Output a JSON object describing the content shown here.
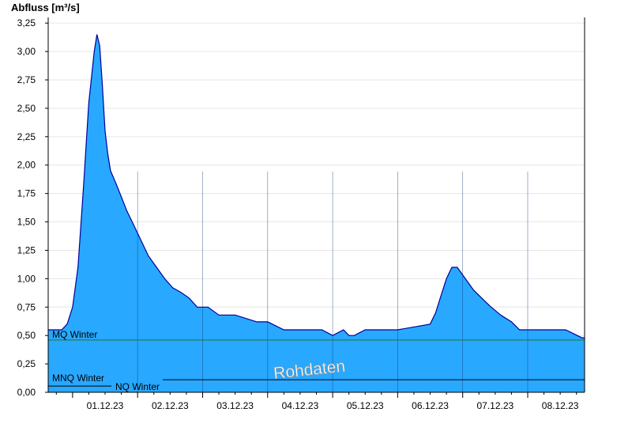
{
  "chart_data": {
    "type": "area",
    "ylabel": "Abfluss [m³/s]",
    "ylim": [
      0,
      3.3
    ],
    "yticks": [
      "0,00",
      "0,25",
      "0,50",
      "0,75",
      "1,00",
      "1,25",
      "1,50",
      "1,75",
      "2,00",
      "2,25",
      "2,50",
      "2,75",
      "3,00",
      "3,25"
    ],
    "ytick_values": [
      0,
      0.25,
      0.5,
      0.75,
      1.0,
      1.25,
      1.5,
      1.75,
      2.0,
      2.25,
      2.5,
      2.75,
      3.0,
      3.25
    ],
    "x_start": "2023-11-30T15:00",
    "x_end": "2023-12-08T21:00",
    "xticks": [
      {
        "label": "01.12.23",
        "value": "2023-12-01T12:00"
      },
      {
        "label": "02.12.23",
        "value": "2023-12-02T12:00"
      },
      {
        "label": "03.12.23",
        "value": "2023-12-03T12:00"
      },
      {
        "label": "04.12.23",
        "value": "2023-12-04T12:00"
      },
      {
        "label": "05.12.23",
        "value": "2023-12-05T12:00"
      },
      {
        "label": "06.12.23",
        "value": "2023-12-06T12:00"
      },
      {
        "label": "07.12.23",
        "value": "2023-12-07T12:00"
      },
      {
        "label": "08.12.23",
        "value": "2023-12-08T12:00"
      }
    ],
    "day_boundaries": [
      "2023-12-02T00:00",
      "2023-12-03T00:00",
      "2023-12-04T00:00",
      "2023-12-05T00:00",
      "2023-12-06T00:00",
      "2023-12-07T00:00",
      "2023-12-08T00:00"
    ],
    "series": [
      {
        "x": [
          "2023-11-30T15:00",
          "2023-11-30T20:00",
          "2023-11-30T22:00",
          "2023-12-01T00:00",
          "2023-12-01T02:00",
          "2023-12-01T04:00",
          "2023-12-01T06:00",
          "2023-12-01T08:00",
          "2023-12-01T09:00",
          "2023-12-01T10:00",
          "2023-12-01T11:00",
          "2023-12-01T12:00",
          "2023-12-01T13:00",
          "2023-12-01T14:00",
          "2023-12-01T16:00",
          "2023-12-01T18:00",
          "2023-12-01T20:00",
          "2023-12-01T22:00",
          "2023-12-02T00:00",
          "2023-12-02T02:00",
          "2023-12-02T04:00",
          "2023-12-02T07:00",
          "2023-12-02T10:00",
          "2023-12-02T13:00",
          "2023-12-02T16:00",
          "2023-12-02T19:00",
          "2023-12-02T22:00",
          "2023-12-03T02:00",
          "2023-12-03T06:00",
          "2023-12-03T12:00",
          "2023-12-03T20:00",
          "2023-12-04T00:00",
          "2023-12-04T06:00",
          "2023-12-04T09:00",
          "2023-12-04T20:00",
          "2023-12-05T00:00",
          "2023-12-05T04:00",
          "2023-12-05T06:00",
          "2023-12-05T08:00",
          "2023-12-05T12:00",
          "2023-12-05T15:00",
          "2023-12-05T18:00",
          "2023-12-06T00:00",
          "2023-12-06T12:00",
          "2023-12-06T14:00",
          "2023-12-06T16:00",
          "2023-12-06T18:00",
          "2023-12-06T20:00",
          "2023-12-06T22:00",
          "2023-12-07T01:00",
          "2023-12-07T04:00",
          "2023-12-07T07:00",
          "2023-12-07T10:00",
          "2023-12-07T14:00",
          "2023-12-07T18:00",
          "2023-12-07T21:00",
          "2023-12-08T00:00",
          "2023-12-08T03:00",
          "2023-12-08T14:00",
          "2023-12-08T20:00",
          "2023-12-08T21:00"
        ],
        "y": [
          0.55,
          0.55,
          0.6,
          0.75,
          1.1,
          1.8,
          2.55,
          3.0,
          3.15,
          3.05,
          2.7,
          2.3,
          2.1,
          1.95,
          1.84,
          1.72,
          1.6,
          1.5,
          1.4,
          1.3,
          1.2,
          1.1,
          1.0,
          0.92,
          0.88,
          0.83,
          0.75,
          0.75,
          0.68,
          0.68,
          0.62,
          0.62,
          0.55,
          0.55,
          0.55,
          0.5,
          0.55,
          0.5,
          0.5,
          0.55,
          0.55,
          0.55,
          0.55,
          0.6,
          0.7,
          0.85,
          1.0,
          1.1,
          1.1,
          1.0,
          0.9,
          0.83,
          0.76,
          0.68,
          0.62,
          0.55,
          0.55,
          0.55,
          0.55,
          0.48,
          0.48
        ]
      }
    ],
    "reference_lines": [
      {
        "label": "MQ Winter",
        "value": 0.46,
        "color": "#1a7a1a"
      },
      {
        "label": "MNQ Winter",
        "value": 0.09,
        "color": "#000000"
      },
      {
        "label": "NQ Winter",
        "value": 0.09,
        "color": "#000000"
      }
    ],
    "annotation": "Rohdaten",
    "colors": {
      "fill": "#29a8ff",
      "line": "#00009a",
      "grid": "#e6e6e6"
    }
  }
}
